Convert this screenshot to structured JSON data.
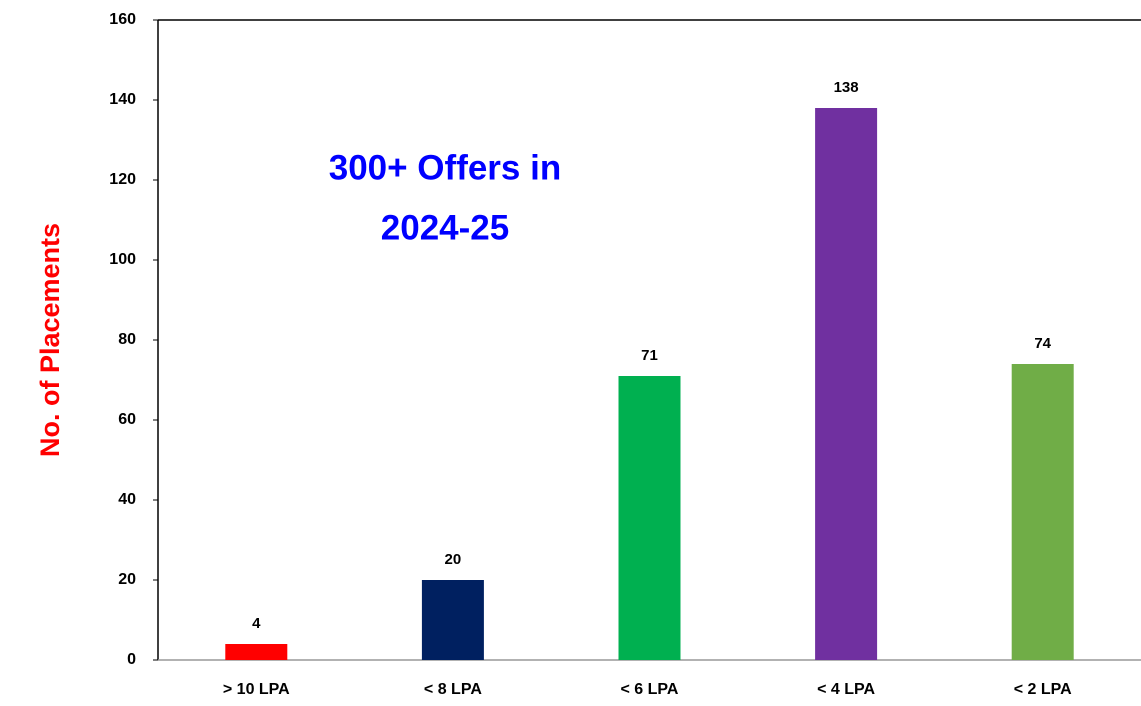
{
  "chart_data": {
    "type": "bar",
    "ylabel": "No. of Placements",
    "annotation": [
      "300+ Offers in",
      "2024-25"
    ],
    "categories": [
      "> 10 LPA",
      "< 8 LPA",
      "< 6 LPA",
      "< 4 LPA",
      "< 2 LPA"
    ],
    "values": [
      4,
      20,
      71,
      138,
      74
    ],
    "colors": [
      "#ff0000",
      "#002060",
      "#00b050",
      "#7030a0",
      "#70ad47"
    ],
    "ylim": [
      0,
      160
    ],
    "yticks": [
      0,
      20,
      40,
      60,
      80,
      100,
      120,
      140,
      160
    ],
    "grid": false
  }
}
